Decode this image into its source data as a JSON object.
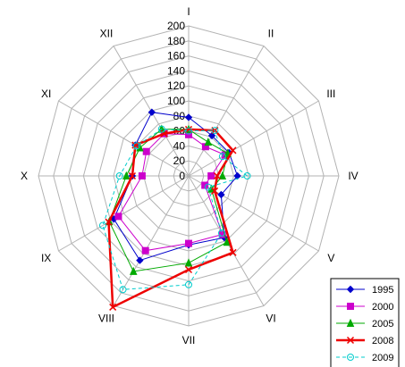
{
  "chart_data": {
    "type": "radar",
    "categories": [
      "I",
      "II",
      "III",
      "IV",
      "V",
      "VI",
      "VII",
      "VIII",
      "IX",
      "X",
      "XI",
      "XII"
    ],
    "rlim": [
      0,
      200
    ],
    "ticks": [
      "0",
      "20",
      "40",
      "60",
      "80",
      "100",
      "120",
      "140",
      "160",
      "180",
      "200"
    ],
    "grid": true,
    "legend_position": "bottom-right",
    "series": [
      {
        "name": "1995",
        "color": "#0000cc",
        "dash": "solid",
        "marker": "diamond",
        "values": [
          78,
          62,
          62,
          65,
          50,
          95,
          92,
          130,
          115,
          75,
          82,
          98
        ]
      },
      {
        "name": "2000",
        "color": "#cc00cc",
        "dash": "solid",
        "marker": "square",
        "values": [
          55,
          45,
          56,
          30,
          25,
          90,
          90,
          115,
          108,
          62,
          65,
          65
        ]
      },
      {
        "name": "2005",
        "color": "#00aa00",
        "dash": "solid",
        "marker": "triangle",
        "values": [
          62,
          52,
          60,
          45,
          35,
          102,
          116,
          147,
          122,
          83,
          75,
          72
        ]
      },
      {
        "name": "2008",
        "color": "#ee0000",
        "dash": "solid",
        "marker": "x",
        "values": [
          62,
          70,
          68,
          38,
          40,
          118,
          125,
          202,
          123,
          75,
          82,
          65
        ]
      },
      {
        "name": "2009",
        "color": "#00cccc",
        "dash": "dashed",
        "marker": "circle",
        "values": [
          60,
          70,
          52,
          78,
          30,
          88,
          145,
          175,
          132,
          92,
          80,
          72
        ]
      }
    ]
  }
}
